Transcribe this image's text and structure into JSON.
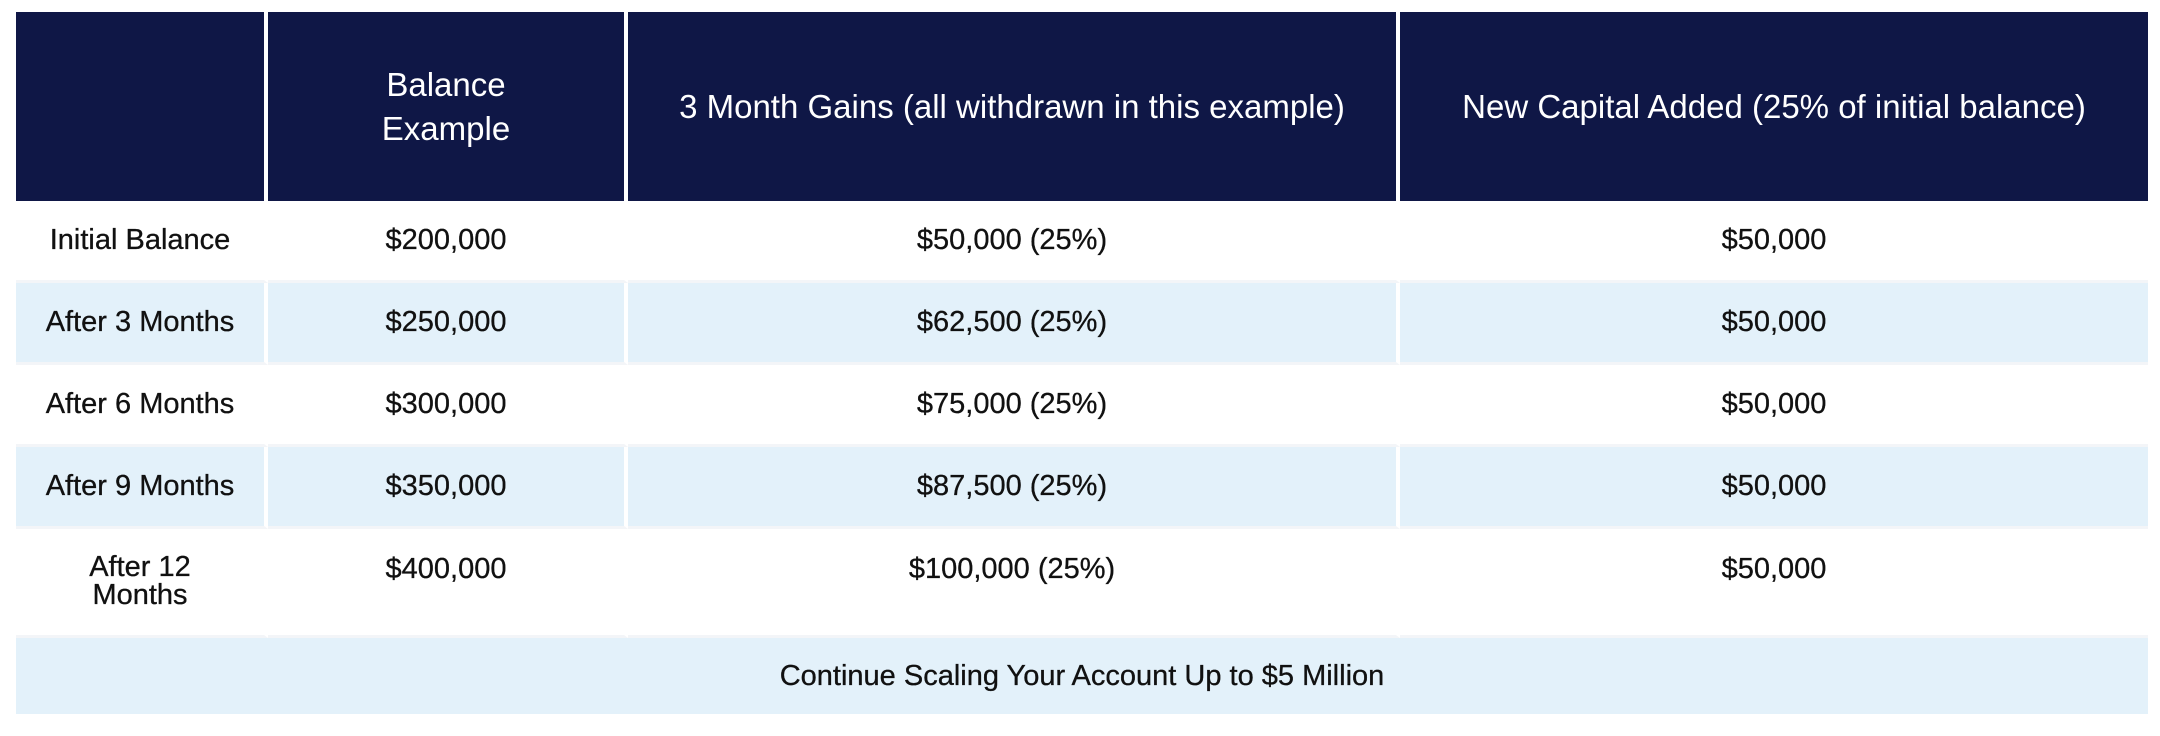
{
  "headers": [
    "",
    "Balance Example",
    "3 Month Gains (all withdrawn in this example)",
    "New Capital Added (25% of initial balance)"
  ],
  "rows": [
    [
      "Initial Balance",
      "$200,000",
      "$50,000 (25%)",
      "$50,000"
    ],
    [
      "After 3 Months",
      "$250,000",
      "$62,500 (25%)",
      "$50,000"
    ],
    [
      "After 6 Months",
      "$300,000",
      "$75,000 (25%)",
      "$50,000"
    ],
    [
      "After 9 Months",
      "$350,000",
      "$87,500 (25%)",
      "$50,000"
    ],
    [
      "After 12 Months",
      "$400,000",
      "$100,000 (25%)",
      "$50,000"
    ]
  ],
  "footer": "Continue Scaling Your Account Up to $5 Million",
  "colors": {
    "header_bg": "#0f1746",
    "alt_row_bg": "#e3f1fa",
    "header_text": "#ffffff"
  }
}
